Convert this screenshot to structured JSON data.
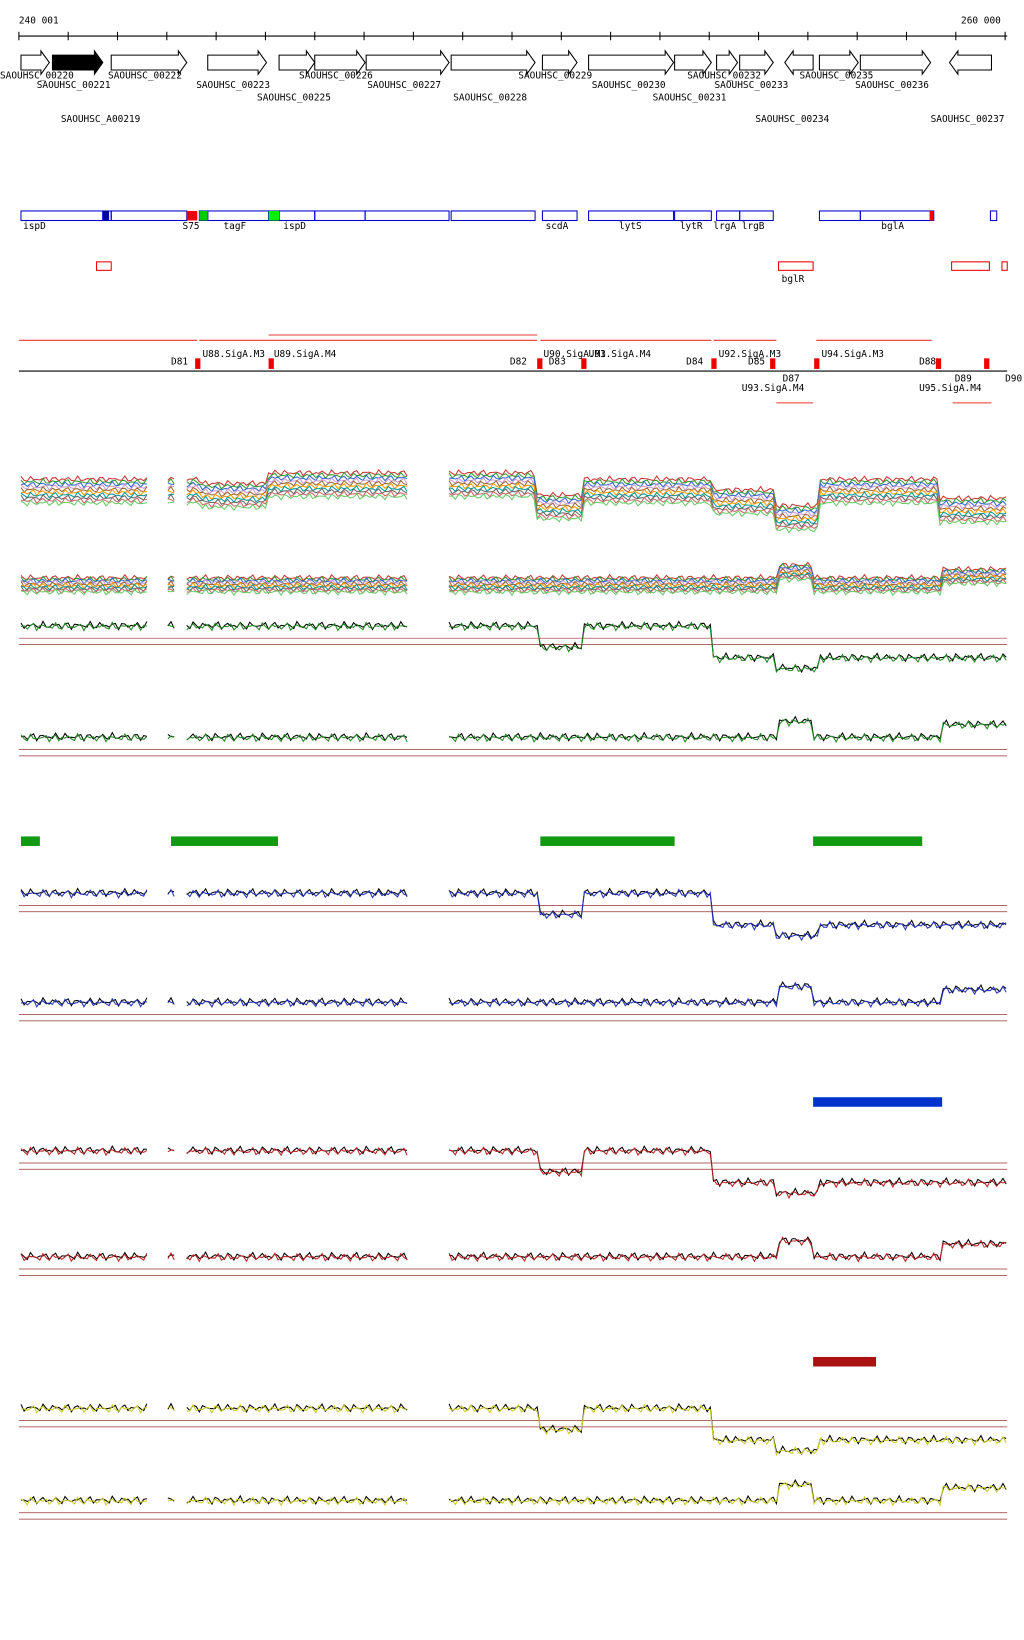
{
  "ruler": {
    "start": "240 001",
    "end": "260 000"
  },
  "genes": [
    "SAOUHSC_00220",
    "SAOUHSC_00221",
    "SAOUHSC_00222",
    "SAOUHSC_00223",
    "SAOUHSC_00225",
    "SAOUHSC_00226",
    "SAOUHSC_00227",
    "SAOUHSC_00228",
    "SAOUHSC_00229",
    "SAOUHSC_00230",
    "SAOUHSC_00231",
    "SAOUHSC_00232",
    "SAOUHSC_00233",
    "SAOUHSC_00234",
    "SAOUHSC_00235",
    "SAOUHSC_00236",
    "SAOUHSC_00237",
    "SAOUHSC_A00219"
  ],
  "annotations": [
    "ispD",
    "S75",
    "tagF",
    "ispD",
    "scdA",
    "lytS",
    "lytR",
    "lrgA",
    "lrgB",
    "bglA",
    "bglR"
  ],
  "regions": [
    "D81",
    "U88.SigA.M3",
    "U89.SigA.M4",
    "D82",
    "U90.SigA.M3",
    "D83",
    "U91.SigA.M4",
    "D84",
    "U92.SigA.M3",
    "D85",
    "U93.SigA.M4",
    "D87",
    "U94.SigA.M3",
    "D88",
    "D89",
    "U95.SigA.M4",
    "D90"
  ]
}
